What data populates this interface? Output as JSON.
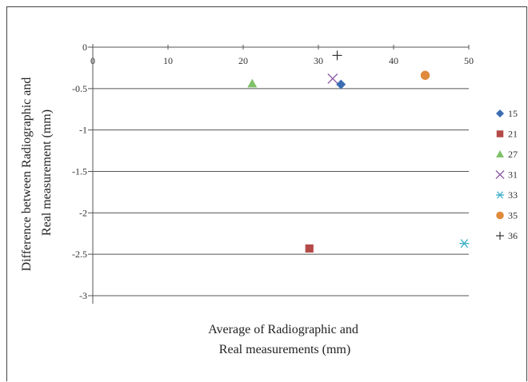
{
  "chart_data": {
    "type": "scatter",
    "title": "",
    "xlabel": [
      "Average of Radiographic and",
      "Real measurements (mm)"
    ],
    "ylabel": [
      "Difference between Radiographic and",
      "Real measurement (mm)"
    ],
    "xlim": [
      0,
      50
    ],
    "ylim": [
      -3,
      0
    ],
    "x_ticks": [
      "0",
      "10",
      "20",
      "30",
      "40",
      "50"
    ],
    "y_ticks": [
      "0",
      "-0.5",
      "-1",
      "-1.5",
      "-2",
      "-2.5",
      "-3"
    ],
    "grid": "horizontal",
    "legend_position": "right",
    "series": [
      {
        "name": "15",
        "marker": "diamond",
        "color": "#3b6db3",
        "points": [
          [
            33.0,
            -0.45
          ]
        ]
      },
      {
        "name": "21",
        "marker": "square",
        "color": "#b44a47",
        "points": [
          [
            28.8,
            -2.43
          ]
        ]
      },
      {
        "name": "27",
        "marker": "triangle",
        "color": "#7fc16a",
        "points": [
          [
            21.2,
            -0.44
          ]
        ]
      },
      {
        "name": "31",
        "marker": "x",
        "color": "#8e5ba8",
        "points": [
          [
            31.9,
            -0.38
          ]
        ]
      },
      {
        "name": "33",
        "marker": "asterisk",
        "color": "#3bb0c9",
        "points": [
          [
            49.4,
            -2.37
          ]
        ]
      },
      {
        "name": "35",
        "marker": "circle",
        "color": "#e08a3c",
        "points": [
          [
            44.2,
            -0.34
          ]
        ]
      },
      {
        "name": "36",
        "marker": "plus",
        "color": "#333333",
        "points": [
          [
            32.5,
            -0.1
          ]
        ]
      }
    ]
  }
}
